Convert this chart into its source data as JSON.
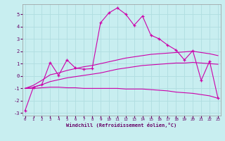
{
  "xlabel": "Windchill (Refroidissement éolien,°C)",
  "bg_color": "#c8eef0",
  "grid_color": "#b0dde0",
  "line_color": "#cc00aa",
  "x_values": [
    0,
    1,
    2,
    3,
    4,
    5,
    6,
    7,
    8,
    9,
    10,
    11,
    12,
    13,
    14,
    15,
    16,
    17,
    18,
    19,
    20,
    21,
    22,
    23
  ],
  "main_line": [
    -2.8,
    -0.9,
    -0.7,
    1.1,
    0.05,
    1.3,
    0.65,
    0.55,
    0.6,
    4.3,
    5.1,
    5.5,
    5.0,
    4.1,
    4.85,
    3.3,
    3.0,
    2.5,
    2.1,
    1.3,
    2.05,
    -0.35,
    1.2,
    -1.8
  ],
  "line_bottom": [
    -1.0,
    -1.0,
    -0.95,
    -0.9,
    -0.9,
    -0.95,
    -0.95,
    -1.0,
    -1.0,
    -1.0,
    -1.0,
    -1.0,
    -1.05,
    -1.05,
    -1.05,
    -1.1,
    -1.15,
    -1.2,
    -1.3,
    -1.35,
    -1.4,
    -1.5,
    -1.6,
    -1.8
  ],
  "line_mid": [
    -1.0,
    -0.9,
    -0.7,
    -0.45,
    -0.3,
    -0.15,
    -0.05,
    0.05,
    0.15,
    0.25,
    0.4,
    0.55,
    0.65,
    0.75,
    0.85,
    0.9,
    0.95,
    1.0,
    1.05,
    1.05,
    1.1,
    1.05,
    1.0,
    0.95
  ],
  "line_top": [
    -1.0,
    -0.75,
    -0.35,
    0.1,
    0.25,
    0.45,
    0.6,
    0.75,
    0.85,
    1.0,
    1.15,
    1.3,
    1.45,
    1.55,
    1.65,
    1.75,
    1.8,
    1.85,
    1.9,
    1.95,
    2.0,
    1.9,
    1.8,
    1.65
  ],
  "ylim": [
    -3.2,
    5.8
  ],
  "xlim": [
    -0.3,
    23.3
  ],
  "yticks": [
    -3,
    -2,
    -1,
    0,
    1,
    2,
    3,
    4,
    5
  ],
  "xticks": [
    0,
    1,
    2,
    3,
    4,
    5,
    6,
    7,
    8,
    9,
    10,
    11,
    12,
    13,
    14,
    15,
    16,
    17,
    18,
    19,
    20,
    21,
    22,
    23
  ]
}
